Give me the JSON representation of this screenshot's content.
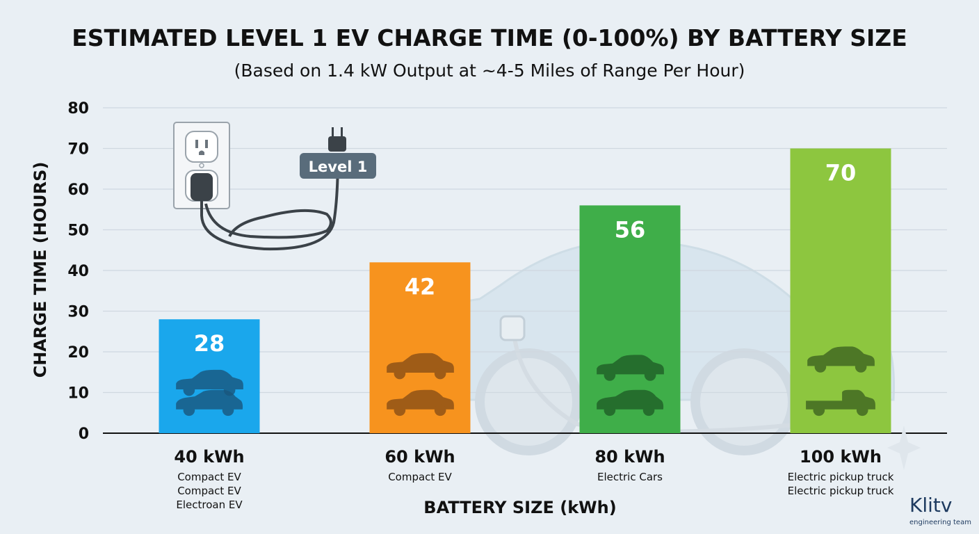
{
  "chart_data": {
    "type": "bar",
    "title": "ESTIMATED LEVEL 1 EV CHARGE TIME (0-100%) BY BATTERY SIZE",
    "subtitle": "(Based on 1.4 kW Output at ~4-5 Miles of Range Per Hour)",
    "xlabel": "BATTERY SIZE (kWh)",
    "ylabel": "CHARGE TIME (HOURS)",
    "ylim": [
      0,
      80
    ],
    "yticks": [
      0,
      10,
      20,
      30,
      40,
      50,
      60,
      70,
      80
    ],
    "grid": true,
    "categories": [
      "40 kWh",
      "60 kWh",
      "80 kWh",
      "100 kWh"
    ],
    "values": [
      28,
      42,
      56,
      70
    ],
    "category_sublabels": [
      [
        "Compact EV",
        "Compact EV",
        "Electroan EV"
      ],
      [
        "Compact EV"
      ],
      [
        "Electric Cars"
      ],
      [
        "Electric pickup truck",
        "Electric pickup truck"
      ]
    ],
    "bar_colors": [
      "#1aa7ec",
      "#f7931e",
      "#3fae49",
      "#8dc63f"
    ]
  },
  "illustration": {
    "badge": "Level 1",
    "icons": [
      "wall-outlet-icon",
      "charging-plug-icon",
      "car-silhouette-icon",
      "car-icon",
      "pickup-truck-icon"
    ]
  },
  "logo": {
    "name": "Klitv",
    "tagline": "engineering team"
  }
}
